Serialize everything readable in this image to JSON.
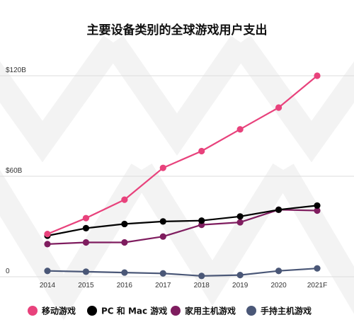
{
  "chart_data": {
    "type": "line",
    "title": "主要设备类别的全球游戏用户支出",
    "xlabel": "",
    "ylabel": "",
    "categories": [
      "2014",
      "2015",
      "2016",
      "2017",
      "2018",
      "2019",
      "2020",
      "2021F"
    ],
    "y_ticks": [
      {
        "value": 0,
        "label": "0"
      },
      {
        "value": 60,
        "label": "$60B"
      },
      {
        "value": 120,
        "label": "$120B"
      }
    ],
    "ylim": [
      0,
      125
    ],
    "grid": true,
    "legend_position": "bottom",
    "series": [
      {
        "name": "移动游戏",
        "color": "#e8427c",
        "values": [
          25.5,
          35,
          46,
          65,
          75,
          88,
          101,
          120
        ]
      },
      {
        "name": "PC 和 Mac 游戏",
        "color": "#000000",
        "values": [
          24.5,
          29,
          31.5,
          33,
          33.5,
          36,
          40,
          42.5
        ]
      },
      {
        "name": "家用主机游戏",
        "color": "#7f1d5f",
        "values": [
          19.5,
          20.5,
          20.5,
          24,
          31,
          32.5,
          40,
          39.5
        ]
      },
      {
        "name": "手持主机游戏",
        "color": "#4a5777",
        "values": [
          3.5,
          3,
          2.5,
          2,
          0.5,
          1,
          3.5,
          5
        ]
      }
    ]
  }
}
